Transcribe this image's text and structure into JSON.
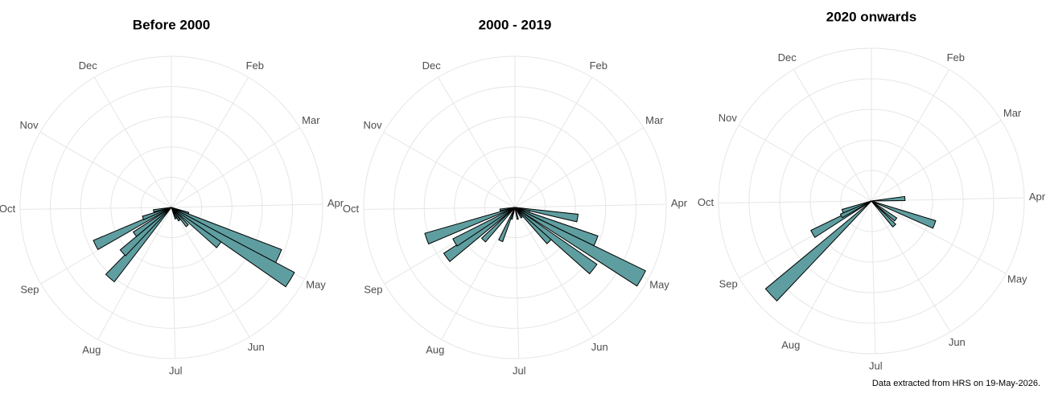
{
  "chart_data": [
    {
      "type": "polar_bar",
      "title": "Before 2000",
      "color": "#5f9ea0",
      "xlim": [
        1,
        366
      ],
      "rlim": [
        0,
        5
      ],
      "rticks": [
        1,
        2,
        3,
        4,
        5
      ],
      "xticks": [
        {
          "value": 32,
          "label": "Feb"
        },
        {
          "value": 60,
          "label": "Mar"
        },
        {
          "value": 91,
          "label": "Apr"
        },
        {
          "value": 121,
          "label": "May"
        },
        {
          "value": 152,
          "label": "Jun"
        },
        {
          "value": 182,
          "label": "Jul"
        },
        {
          "value": 213,
          "label": "Aug"
        },
        {
          "value": 244,
          "label": "Sep"
        },
        {
          "value": 274,
          "label": "Oct"
        },
        {
          "value": 305,
          "label": "Nov"
        },
        {
          "value": 335,
          "label": "Dec"
        }
      ],
      "x": [
        112,
        117,
        124,
        131,
        142,
        152,
        162,
        225,
        231,
        238,
        248,
        254,
        264
      ],
      "values": [
        0.6,
        3.9,
        4.6,
        2.0,
        0.8,
        0.5,
        0.4,
        3.1,
        2.2,
        1.5,
        2.8,
        1.0,
        0.6
      ]
    },
    {
      "type": "polar_bar",
      "title": "2000 - 2019",
      "color": "#5f9ea0",
      "xlim": [
        1,
        366
      ],
      "rlim": [
        0,
        5
      ],
      "rticks": [
        1,
        2,
        3,
        4,
        5
      ],
      "xticks": [
        {
          "value": 32,
          "label": "Feb"
        },
        {
          "value": 60,
          "label": "Mar"
        },
        {
          "value": 91,
          "label": "Apr"
        },
        {
          "value": 121,
          "label": "May"
        },
        {
          "value": 152,
          "label": "Jun"
        },
        {
          "value": 182,
          "label": "Jul"
        },
        {
          "value": 213,
          "label": "Aug"
        },
        {
          "value": 244,
          "label": "Sep"
        },
        {
          "value": 274,
          "label": "Oct"
        },
        {
          "value": 305,
          "label": "Nov"
        },
        {
          "value": 335,
          "label": "Dec"
        }
      ],
      "x": [
        102,
        108,
        115,
        122,
        131,
        138,
        150,
        170,
        200,
        207,
        228,
        238,
        244,
        255,
        265
      ],
      "values": [
        2.1,
        0.5,
        2.9,
        4.8,
        3.3,
        1.6,
        0.4,
        0.4,
        0.4,
        1.2,
        1.5,
        2.8,
        2.3,
        3.1,
        0.5
      ]
    },
    {
      "type": "polar_bar",
      "title": "2020 onwards",
      "color": "#5f9ea0",
      "xlim": [
        1,
        366
      ],
      "rlim": [
        0,
        5
      ],
      "rticks": [
        1,
        2,
        3,
        4,
        5
      ],
      "xticks": [
        {
          "value": 32,
          "label": "Feb"
        },
        {
          "value": 60,
          "label": "Mar"
        },
        {
          "value": 91,
          "label": "Apr"
        },
        {
          "value": 121,
          "label": "May"
        },
        {
          "value": 152,
          "label": "Jun"
        },
        {
          "value": 182,
          "label": "Jul"
        },
        {
          "value": 213,
          "label": "Aug"
        },
        {
          "value": 244,
          "label": "Sep"
        },
        {
          "value": 274,
          "label": "Oct"
        },
        {
          "value": 305,
          "label": "Nov"
        },
        {
          "value": 335,
          "label": "Dec"
        }
      ],
      "x": [
        88,
        113,
        130,
        140,
        231,
        245,
        248,
        255
      ],
      "values": [
        1.1,
        2.2,
        1.0,
        1.1,
        4.5,
        2.2,
        1.1,
        1.0
      ]
    }
  ],
  "caption": "Data extracted from HRS on 19-May-2026."
}
